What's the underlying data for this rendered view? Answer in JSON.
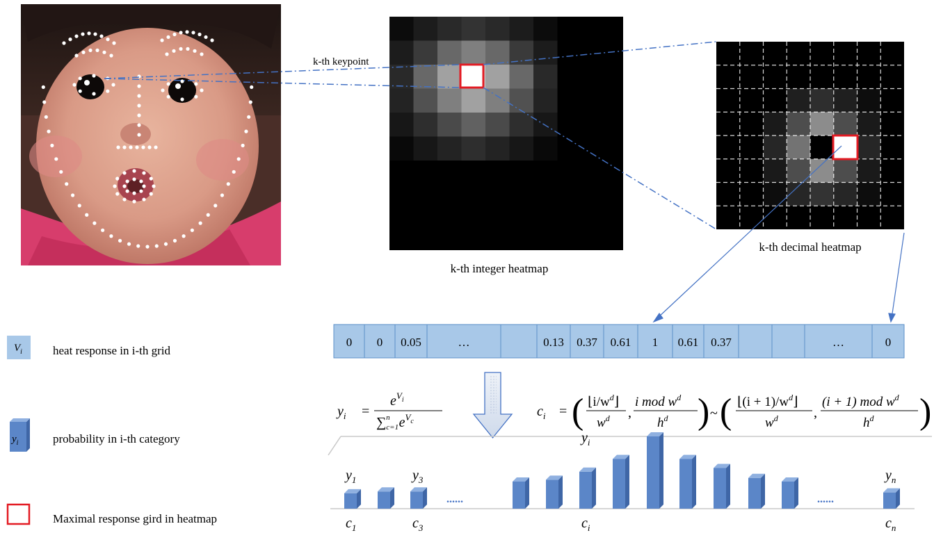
{
  "labels": {
    "keypoint": "k-th keypoint",
    "integer_heatmap": "k-th integer heatmap",
    "decimal_heatmap": "k-th decimal heatmap"
  },
  "grid_cells": [
    "0",
    "0",
    "0.05",
    "…",
    "",
    "0.13",
    "0.37",
    "0.61",
    "1",
    "0.61",
    "0.37",
    "",
    "",
    "…",
    "0"
  ],
  "formulas": {
    "y_lhs": "y",
    "y_lhs_sub": "i",
    "y_num_base": "e",
    "y_num_exp": "V",
    "y_num_exp_sub": "i",
    "y_den_sum": "∑",
    "y_den_sub": "c=1",
    "y_den_sup": "n",
    "y_den_base": "e",
    "y_den_exp": "V",
    "y_den_exp_sub": "c",
    "c_lhs": "c",
    "c_lhs_sub": "i",
    "c_frac1_num": "⌊i/w",
    "c_frac1_num_sup": "d",
    "c_frac1_num_end": "⌋",
    "c_frac1_den": "w",
    "c_frac1_den_sup": "d",
    "c_frac2_num": "i mod w",
    "c_frac2_num_sup": "d",
    "c_frac2_den": "h",
    "c_frac2_den_sup": "d",
    "c_frac3_num": "⌊(i + 1)/w",
    "c_frac3_num_sup": "d",
    "c_frac3_num_end": "⌋",
    "c_frac3_den": "w",
    "c_frac3_den_sup": "d",
    "c_frac4_num": "(i + 1) mod w",
    "c_frac4_num_sup": "d",
    "c_frac4_den": "h",
    "c_frac4_den_sup": "d",
    "tilde": "~",
    "comma": ","
  },
  "bars": {
    "values": [
      0.17,
      0.19,
      0.19,
      0.3,
      0.32,
      0.41,
      0.55,
      0.8,
      0.55,
      0.45,
      0.34,
      0.3,
      0.18
    ],
    "top_labels": [
      {
        "base": "y",
        "sub": "1"
      },
      {
        "base": "y",
        "sub": "3"
      },
      {
        "base": "y",
        "sub": "i"
      },
      {
        "base": "y",
        "sub": "n"
      }
    ],
    "bottom_labels": [
      {
        "base": "c",
        "sub": "1"
      },
      {
        "base": "c",
        "sub": "3"
      },
      {
        "base": "c",
        "sub": "i"
      },
      {
        "base": "c",
        "sub": "n"
      }
    ],
    "ellipsis": "......"
  },
  "legend": [
    {
      "icon_text": "V",
      "icon_sub": "i",
      "text": "heat response in i-th grid"
    },
    {
      "icon_text": "y",
      "icon_sub": "i",
      "text": "probability in i-th category"
    },
    {
      "icon_text": "",
      "icon_sub": "",
      "text": "Maximal response gird in heatmap"
    }
  ],
  "colors": {
    "cell_fill": "#a8c8e8",
    "cell_border": "#5b8fc8",
    "bar": "#5b86c8",
    "bar_side": "#3f66a6",
    "bar_top": "#8fb0e0",
    "dash_line": "#4472c4",
    "highlight": "#e31b23"
  }
}
